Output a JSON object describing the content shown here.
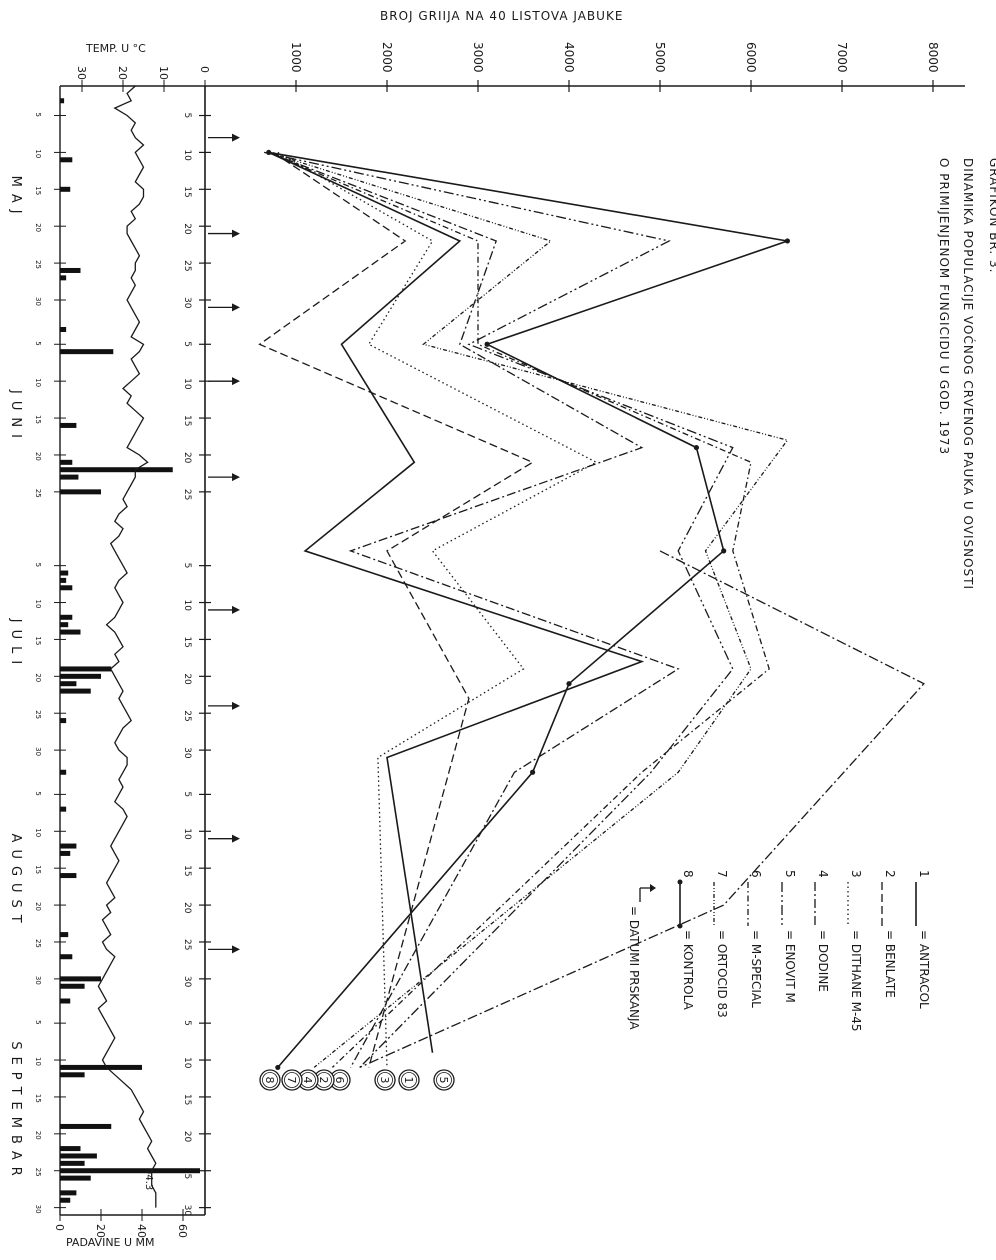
{
  "header": {
    "grafikon": "GRAFIKON BR. 3.",
    "title_line1": "DINAMIKA POPULACIJE VOĆNOG CRVENOG PAUKA U OVISNOSTI",
    "title_line2": "O PRIMIJENJENOM FUNGICIDU U GOD. 1973"
  },
  "chart_data": [
    {
      "type": "line",
      "name_top_axis": "BROJ GRIIJA NA 40 LISTOVA JABUKE",
      "ylim": [
        0,
        8000
      ],
      "ticks": [
        "1000",
        "2000",
        "3000",
        "4000",
        "5000",
        "6000",
        "7000",
        "8000"
      ],
      "x_unit": "days from 1 May",
      "x_ticks": [
        {
          "d": 4,
          "l": "5"
        },
        {
          "d": 9,
          "l": "10"
        },
        {
          "d": 14,
          "l": "15"
        },
        {
          "d": 19,
          "l": "20"
        },
        {
          "d": 24,
          "l": "25"
        },
        {
          "d": 29,
          "l": "30"
        },
        {
          "d": 35,
          "l": "5"
        },
        {
          "d": 40,
          "l": "10"
        },
        {
          "d": 45,
          "l": "15"
        },
        {
          "d": 50,
          "l": "20"
        },
        {
          "d": 55,
          "l": "25"
        },
        {
          "d": 65,
          "l": "5"
        },
        {
          "d": 70,
          "l": "10"
        },
        {
          "d": 75,
          "l": "15"
        },
        {
          "d": 80,
          "l": "20"
        },
        {
          "d": 85,
          "l": "25"
        },
        {
          "d": 90,
          "l": "30"
        },
        {
          "d": 96,
          "l": "5"
        },
        {
          "d": 101,
          "l": "10"
        },
        {
          "d": 106,
          "l": "15"
        },
        {
          "d": 111,
          "l": "20"
        },
        {
          "d": 116,
          "l": "25"
        },
        {
          "d": 121,
          "l": "30"
        },
        {
          "d": 127,
          "l": "5"
        },
        {
          "d": 132,
          "l": "10"
        },
        {
          "d": 137,
          "l": "15"
        },
        {
          "d": 142,
          "l": "20"
        },
        {
          "d": 147,
          "l": "25"
        },
        {
          "d": 152,
          "l": "30"
        }
      ],
      "months": [
        "MAJ",
        "JUNI",
        "JULI",
        "AUGUST",
        "SEPTEMBAR"
      ],
      "spray_days": [
        7,
        20,
        30,
        40,
        53,
        71,
        84,
        102,
        117
      ],
      "series": [
        {
          "name": "1 = ANTRACOL",
          "style": "solid",
          "end_label": "1",
          "points": [
            [
              9,
              700
            ],
            [
              21,
              2800
            ],
            [
              35,
              1500
            ],
            [
              51,
              2300
            ],
            [
              63,
              1100
            ],
            [
              78,
              4800
            ],
            [
              91,
              2000
            ],
            [
              131,
              2500
            ]
          ]
        },
        {
          "name": "2 = BENLATE",
          "style": "dashed",
          "end_label": "2",
          "points": [
            [
              9,
              750
            ],
            [
              21,
              2200
            ],
            [
              35,
              600
            ],
            [
              51,
              3600
            ],
            [
              63,
              2000
            ],
            [
              83,
              2900
            ],
            [
              133,
              1800
            ]
          ]
        },
        {
          "name": "3 = DITHANE M-45",
          "style": "dotted",
          "end_label": "3",
          "points": [
            [
              9,
              800
            ],
            [
              21,
              2500
            ],
            [
              35,
              1800
            ],
            [
              51,
              4300
            ],
            [
              63,
              2500
            ],
            [
              79,
              3500
            ],
            [
              91,
              1900
            ],
            [
              133,
              2000
            ]
          ]
        },
        {
          "name": "4 = DODINE",
          "style": "dashdot",
          "end_label": "4",
          "points": [
            [
              9,
              700
            ],
            [
              21,
              3200
            ],
            [
              35,
              2800
            ],
            [
              49,
              4800
            ],
            [
              63,
              1600
            ],
            [
              79,
              5200
            ],
            [
              93,
              3400
            ],
            [
              133,
              1600
            ]
          ]
        },
        {
          "name": "5 = ENOVIT M",
          "style": "dashdot2",
          "end_label": "5",
          "points": [
            [
              9,
              650
            ],
            [
              21,
              5100
            ],
            [
              35,
              2900
            ],
            [
              49,
              5800
            ],
            [
              63,
              5200
            ],
            [
              79,
              5800
            ],
            [
              93,
              4900
            ],
            [
              133,
              1700
            ]
          ]
        },
        {
          "name": "6 = M-SPECIAL",
          "style": "dashdot3",
          "end_label": "6",
          "points": [
            [
              9,
              700
            ],
            [
              21,
              3000
            ],
            [
              35,
              3000
            ],
            [
              51,
              6000
            ],
            [
              63,
              5800
            ],
            [
              79,
              6200
            ],
            [
              93,
              4800
            ],
            [
              133,
              1400
            ]
          ]
        },
        {
          "name": "7 = ORTOCID 83",
          "style": "dashdotdot",
          "end_label": "7",
          "points": [
            [
              9,
              700
            ],
            [
              21,
              3800
            ],
            [
              35,
              2400
            ],
            [
              48,
              6400
            ],
            [
              63,
              5500
            ],
            [
              79,
              6000
            ],
            [
              93,
              5200
            ],
            [
              133,
              1200
            ]
          ]
        },
        {
          "name": "8 = KONTROLA",
          "style": "solid-dot",
          "end_label": "8",
          "points": [
            [
              9,
              700
            ],
            [
              21,
              6400
            ],
            [
              35,
              3100
            ],
            [
              49,
              5400
            ],
            [
              63,
              5700
            ],
            [
              81,
              4000
            ],
            [
              93,
              3600
            ],
            [
              133,
              800
            ]
          ]
        }
      ],
      "spike_series": {
        "name": "ENOVIT M peak",
        "points": [
          [
            63,
            5000
          ],
          [
            81,
            7900
          ],
          [
            111,
            5700
          ],
          [
            133,
            1700
          ]
        ]
      }
    },
    {
      "type": "line",
      "axis_label": "TEMP. U °C",
      "ticks": [
        "0",
        "10",
        "20",
        "30"
      ],
      "ylim": [
        0,
        35
      ],
      "values": [
        17,
        19,
        18,
        22,
        19,
        17,
        18,
        17,
        15,
        17,
        16,
        15,
        16,
        17,
        15,
        15,
        16,
        18,
        17,
        19,
        19,
        18,
        17,
        16,
        17,
        17,
        18,
        17,
        18,
        19,
        18,
        17,
        16,
        17,
        18,
        15,
        16,
        18,
        17,
        16,
        18,
        20,
        18,
        19,
        17,
        15,
        16,
        17,
        18,
        19,
        16,
        14,
        17,
        17,
        18,
        19,
        20,
        19,
        21,
        22,
        20,
        21,
        23,
        22,
        21,
        20,
        19,
        21,
        22,
        21,
        20,
        21,
        22,
        24,
        22,
        21,
        20,
        22,
        21,
        23,
        22,
        21,
        20,
        21,
        20,
        19,
        18,
        20,
        21,
        22,
        21,
        19,
        19,
        20,
        21,
        20,
        21,
        22,
        20,
        19,
        20,
        21,
        22,
        23,
        22,
        21,
        22,
        23,
        24,
        23,
        22,
        24,
        23,
        25,
        24,
        23,
        25,
        24,
        22,
        23,
        24,
        25,
        26,
        25,
        24,
        26,
        25,
        24,
        23,
        22,
        23,
        24,
        25,
        24,
        22,
        20,
        18,
        17,
        16,
        15,
        16,
        15,
        14,
        13,
        14,
        13,
        12,
        13,
        13,
        13,
        12,
        12,
        12
      ]
    },
    {
      "type": "bar",
      "axis_label": "PADAVINE U MM",
      "ticks": [
        "0",
        "20",
        "40",
        "60"
      ],
      "ylim": [
        0,
        70
      ],
      "bars": [
        [
          2,
          2
        ],
        [
          10,
          6
        ],
        [
          14,
          5
        ],
        [
          25,
          10
        ],
        [
          26,
          3
        ],
        [
          33,
          3
        ],
        [
          36,
          26
        ],
        [
          46,
          8
        ],
        [
          51,
          6
        ],
        [
          52,
          55
        ],
        [
          53,
          9
        ],
        [
          55,
          20
        ],
        [
          66,
          4
        ],
        [
          67,
          3
        ],
        [
          68,
          6
        ],
        [
          72,
          6
        ],
        [
          73,
          4
        ],
        [
          74,
          10
        ],
        [
          79,
          25
        ],
        [
          80,
          20
        ],
        [
          81,
          8
        ],
        [
          82,
          15
        ],
        [
          86,
          3
        ],
        [
          93,
          3
        ],
        [
          98,
          3
        ],
        [
          103,
          8
        ],
        [
          104,
          5
        ],
        [
          107,
          8
        ],
        [
          115,
          4
        ],
        [
          118,
          6
        ],
        [
          121,
          20
        ],
        [
          122,
          12
        ],
        [
          124,
          5
        ],
        [
          133,
          40
        ],
        [
          134,
          12
        ],
        [
          141,
          25
        ],
        [
          144,
          10
        ],
        [
          145,
          18
        ],
        [
          146,
          12
        ],
        [
          147,
          70
        ],
        [
          148,
          15
        ],
        [
          150,
          8
        ],
        [
          151,
          5
        ]
      ],
      "annotation": "94.3"
    }
  ],
  "legend": {
    "items": [
      {
        "num": "1",
        "text": "ANTRACOL",
        "style": "solid"
      },
      {
        "num": "2",
        "text": "BENLATE",
        "style": "dashed"
      },
      {
        "num": "3",
        "text": "DITHANE M-45",
        "style": "dotted"
      },
      {
        "num": "4",
        "text": "DODINE",
        "style": "dashdot"
      },
      {
        "num": "5",
        "text": "ENOVIT M",
        "style": "dashdot2"
      },
      {
        "num": "6",
        "text": "M-SPECIAL",
        "style": "dashdot3"
      },
      {
        "num": "7",
        "text": "ORTOCID 83",
        "style": "dashdotdot"
      },
      {
        "num": "8",
        "text": "KONTROLA",
        "style": "solid-dot"
      }
    ],
    "arrow_text": "DATUMI PRSKANJA"
  },
  "end_circles": [
    "5",
    "1",
    "3",
    "6",
    "2",
    "4",
    "7",
    "8"
  ]
}
